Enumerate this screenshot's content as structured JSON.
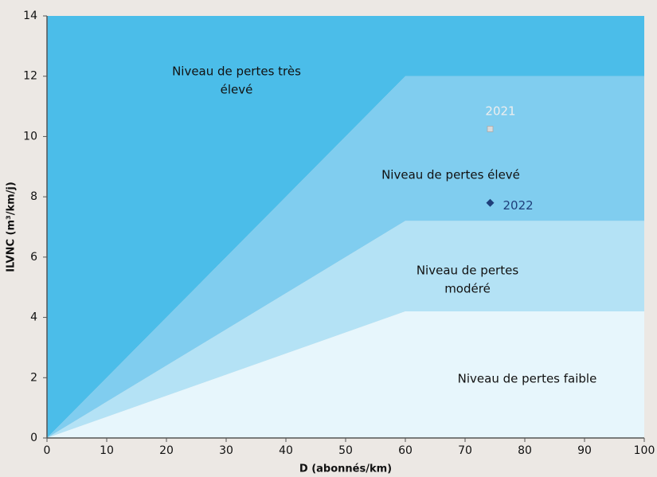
{
  "chart_data": {
    "type": "zones",
    "xlabel": "D (abonnés/km)",
    "ylabel": "ILVNC (m³/km/j)",
    "x": [
      0,
      60,
      100
    ],
    "regions": [
      {
        "label": [
          "Niveau de pertes très",
          "élevé"
        ],
        "color": "#4bbde9",
        "upper": [
          14,
          14,
          14
        ]
      },
      {
        "label": [
          "Niveau de pertes élevé"
        ],
        "color": "#80cdef",
        "upper": [
          0,
          12,
          12
        ]
      },
      {
        "label": [
          "Niveau de pertes",
          "modéré"
        ],
        "color": "#b4e2f5",
        "upper": [
          0,
          7.2,
          7.2
        ]
      },
      {
        "label": [
          "Niveau de pertes faible"
        ],
        "color": "#e7f6fc",
        "upper": [
          0,
          4.2,
          4.2
        ]
      }
    ],
    "points": [
      {
        "label": "2021",
        "x": 74.2,
        "y": 10.25,
        "color": "#d9d9d9",
        "marker": "square"
      },
      {
        "label": "2022",
        "x": 74.2,
        "y": 7.8,
        "color": "#1f3f7a",
        "marker": "diamond"
      }
    ],
    "xlim": [
      0,
      100
    ],
    "xticks": [
      0,
      10,
      20,
      30,
      40,
      50,
      60,
      70,
      80,
      90,
      100
    ],
    "ylim": [
      0,
      14
    ],
    "yticks": [
      0,
      2,
      4,
      6,
      8,
      10,
      12,
      14
    ]
  }
}
